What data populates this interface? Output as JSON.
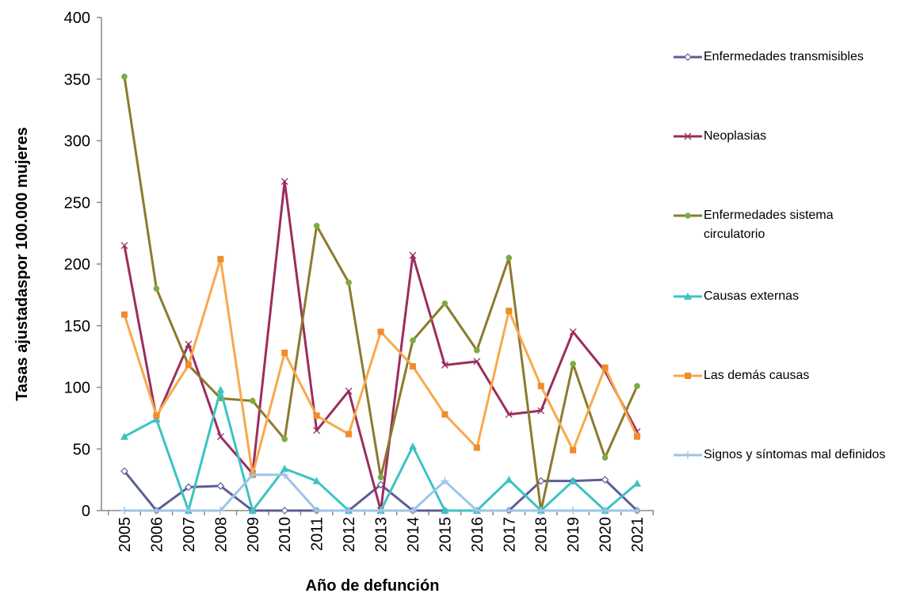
{
  "chart_data": {
    "type": "line",
    "xlabel": "Año de defunción",
    "ylabel": "Tasas ajustadaspor 100.000 mujeres",
    "categories": [
      "2005",
      "2006",
      "2007",
      "2008",
      "2009",
      "2010",
      "2011",
      "2012",
      "2013",
      "2014",
      "2015",
      "2016",
      "2017",
      "2018",
      "2019",
      "2020",
      "2021"
    ],
    "ylim": [
      0,
      400
    ],
    "yticks": [
      0,
      50,
      100,
      150,
      200,
      250,
      300,
      350,
      400
    ],
    "series": [
      {
        "name": "Enfermedades transmisibles",
        "color": "#5b5f97",
        "marker": "diamond",
        "values": [
          32,
          0,
          19,
          20,
          0,
          0,
          0,
          0,
          21,
          0,
          0,
          0,
          0,
          24,
          24,
          25,
          0
        ]
      },
      {
        "name": "Neoplasias",
        "color": "#9b2d5f",
        "marker": "x",
        "values": [
          215,
          75,
          135,
          60,
          30,
          267,
          65,
          97,
          0,
          207,
          118,
          121,
          78,
          81,
          145,
          113,
          64
        ]
      },
      {
        "name": "Enfermedades sistema circulatorio",
        "color": "#8c7a2e",
        "marker": "circle",
        "values": [
          352,
          180,
          118,
          91,
          89,
          58,
          231,
          185,
          27,
          138,
          168,
          130,
          205,
          0,
          119,
          43,
          101
        ]
      },
      {
        "name": "Causas externas",
        "color": "#3cc3c3",
        "marker": "triangle",
        "values": [
          60,
          74,
          0,
          98,
          0,
          34,
          24,
          0,
          0,
          52,
          0,
          0,
          25,
          0,
          24,
          0,
          22
        ]
      },
      {
        "name": "Las demás causas",
        "color": "#f8a94b",
        "marker": "square",
        "values": [
          159,
          77,
          118,
          204,
          29,
          128,
          77,
          62,
          145,
          117,
          78,
          51,
          162,
          101,
          49,
          116,
          60
        ]
      },
      {
        "name": "Signos y síntomas mal definidos",
        "color": "#9ec4e8",
        "marker": "plus",
        "values": [
          0,
          0,
          0,
          0,
          29,
          29,
          0,
          0,
          0,
          0,
          24,
          0,
          0,
          0,
          0,
          0,
          0
        ]
      }
    ]
  }
}
